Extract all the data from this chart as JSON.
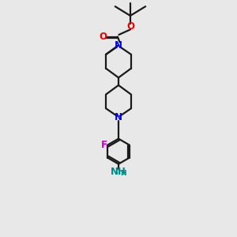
{
  "background_color": "#e8e8e8",
  "bond_color": "#1a1a1a",
  "N_color": "#0000ee",
  "O_color": "#ee0000",
  "F_color": "#cc00cc",
  "NH2_color": "#008888",
  "line_width": 1.6,
  "figsize": [
    3.0,
    3.0
  ],
  "dpi": 100,
  "xlim": [
    0,
    10
  ],
  "ylim": [
    0,
    14
  ]
}
